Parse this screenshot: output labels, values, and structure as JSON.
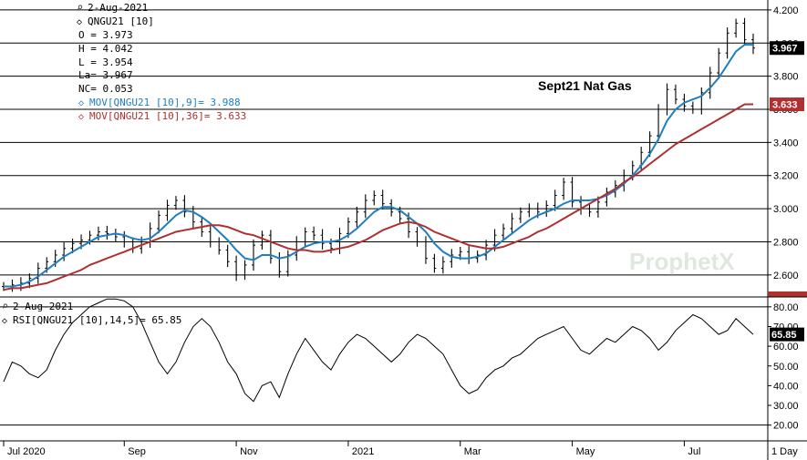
{
  "chart_data": [
    {
      "type": "line",
      "panel": "price",
      "title": "Sept21 Nat Gas",
      "date": "2-Aug-2021",
      "symbol": "QNGU21 [10]",
      "ohlc": {
        "open": "O = 3.973",
        "high": "H = 4.042",
        "low": "L = 3.954",
        "last": "La= 3.967",
        "net_change": "NC= 0.053"
      },
      "indicator_labels": {
        "mov9": "MOV[QNGU21 [10],9]= 3.988",
        "mov36": "MOV[QNGU21 [10],36]= 3.633"
      },
      "last_price_tag": "3.967",
      "mov36_tag": "3.633",
      "watermark": "ProphetX",
      "ylim": [
        2.5,
        4.26
      ],
      "yticks": [
        "2.600",
        "2.800",
        "3.000",
        "3.200",
        "3.400",
        "3.600",
        "3.800",
        "4.000",
        "4.200"
      ],
      "ytick_values": [
        2.6,
        2.8,
        3.0,
        3.2,
        3.4,
        3.6,
        3.8,
        4.0,
        4.2
      ],
      "grid": "horizontal",
      "series": [
        {
          "name": "QNGU21 [10]",
          "kind": "price",
          "color": "#000000",
          "values": [
            2.53,
            2.54,
            2.55,
            2.58,
            2.64,
            2.68,
            2.72,
            2.76,
            2.79,
            2.81,
            2.84,
            2.86,
            2.85,
            2.83,
            2.8,
            2.76,
            2.8,
            2.88,
            2.96,
            3.02,
            3.05,
            2.98,
            2.92,
            2.86,
            2.8,
            2.75,
            2.68,
            2.6,
            2.66,
            2.78,
            2.84,
            2.7,
            2.62,
            2.72,
            2.8,
            2.86,
            2.84,
            2.79,
            2.76,
            2.85,
            2.92,
            2.98,
            3.05,
            3.08,
            3.03,
            2.98,
            2.94,
            2.86,
            2.8,
            2.7,
            2.64,
            2.68,
            2.72,
            2.74,
            2.7,
            2.72,
            2.78,
            2.84,
            2.88,
            2.94,
            2.98,
            3.0,
            2.98,
            3.02,
            3.08,
            3.16,
            3.04,
            3.0,
            2.98,
            3.04,
            3.1,
            3.14,
            3.2,
            3.26,
            3.34,
            3.44,
            3.6,
            3.72,
            3.66,
            3.62,
            3.6,
            3.7,
            3.82,
            3.94,
            4.06,
            4.12,
            4.02,
            3.97
          ]
        },
        {
          "name": "MOV 9",
          "color": "#1f7fbf",
          "values": [
            2.53,
            2.53,
            2.54,
            2.56,
            2.59,
            2.63,
            2.67,
            2.71,
            2.74,
            2.77,
            2.8,
            2.83,
            2.84,
            2.85,
            2.84,
            2.82,
            2.81,
            2.82,
            2.86,
            2.91,
            2.96,
            2.99,
            2.98,
            2.95,
            2.91,
            2.86,
            2.81,
            2.75,
            2.7,
            2.69,
            2.72,
            2.72,
            2.7,
            2.71,
            2.74,
            2.77,
            2.79,
            2.8,
            2.8,
            2.81,
            2.84,
            2.88,
            2.93,
            2.98,
            3.01,
            3.01,
            2.99,
            2.95,
            2.91,
            2.86,
            2.79,
            2.74,
            2.71,
            2.7,
            2.7,
            2.71,
            2.73,
            2.77,
            2.81,
            2.85,
            2.89,
            2.93,
            2.96,
            2.98,
            3.0,
            3.03,
            3.05,
            3.05,
            3.05,
            3.06,
            3.08,
            3.11,
            3.15,
            3.2,
            3.26,
            3.33,
            3.42,
            3.53,
            3.6,
            3.64,
            3.66,
            3.68,
            3.73,
            3.79,
            3.87,
            3.95,
            3.99,
            3.99
          ]
        },
        {
          "name": "MOV 36",
          "color": "#b03030",
          "values": [
            2.51,
            2.52,
            2.52,
            2.53,
            2.54,
            2.55,
            2.57,
            2.59,
            2.61,
            2.63,
            2.66,
            2.68,
            2.7,
            2.72,
            2.74,
            2.76,
            2.78,
            2.8,
            2.82,
            2.84,
            2.86,
            2.87,
            2.88,
            2.89,
            2.9,
            2.9,
            2.89,
            2.87,
            2.85,
            2.84,
            2.82,
            2.8,
            2.78,
            2.76,
            2.75,
            2.75,
            2.74,
            2.74,
            2.75,
            2.76,
            2.77,
            2.79,
            2.81,
            2.84,
            2.87,
            2.89,
            2.91,
            2.92,
            2.91,
            2.89,
            2.86,
            2.84,
            2.82,
            2.8,
            2.78,
            2.77,
            2.76,
            2.76,
            2.77,
            2.79,
            2.81,
            2.83,
            2.86,
            2.88,
            2.91,
            2.94,
            2.97,
            3.0,
            3.03,
            3.06,
            3.09,
            3.12,
            3.16,
            3.19,
            3.23,
            3.27,
            3.31,
            3.35,
            3.39,
            3.42,
            3.45,
            3.48,
            3.51,
            3.54,
            3.57,
            3.6,
            3.63,
            3.63
          ]
        }
      ]
    },
    {
      "type": "line",
      "panel": "rsi",
      "date": "2-Aug-2021",
      "label": "RSI[QNGU21 [10],14,5]= 65.85",
      "last_value_tag": "65.85",
      "ylim": [
        12,
        85
      ],
      "yticks": [
        "20.00",
        "30.00",
        "40.00",
        "50.00",
        "60.00",
        "70.00",
        "80.00"
      ],
      "ytick_values": [
        20,
        30,
        40,
        50,
        60,
        70,
        80
      ],
      "reference_lines": [
        20,
        80
      ],
      "series": [
        {
          "name": "RSI",
          "color": "#000000",
          "values": [
            42,
            52,
            50,
            46,
            44,
            48,
            58,
            66,
            72,
            76,
            80,
            82,
            84,
            84,
            83,
            80,
            72,
            62,
            52,
            46,
            52,
            62,
            70,
            74,
            70,
            62,
            52,
            46,
            36,
            32,
            40,
            42,
            34,
            46,
            56,
            64,
            58,
            52,
            48,
            56,
            62,
            66,
            64,
            60,
            56,
            52,
            56,
            62,
            66,
            64,
            60,
            56,
            48,
            40,
            36,
            38,
            44,
            48,
            50,
            54,
            56,
            60,
            64,
            66,
            68,
            70,
            64,
            58,
            56,
            60,
            64,
            62,
            66,
            70,
            68,
            64,
            58,
            62,
            68,
            72,
            76,
            74,
            70,
            66,
            68,
            74,
            70,
            66
          ]
        }
      ]
    },
    {
      "type": "axis",
      "panel": "time",
      "month_labels": [
        "Jul 2020",
        "Sep",
        "Nov",
        "2021",
        "Mar",
        "May",
        "Jul"
      ],
      "month_positions": [
        0,
        14,
        27,
        40,
        53,
        66,
        79
      ],
      "period": "1 Day"
    }
  ]
}
